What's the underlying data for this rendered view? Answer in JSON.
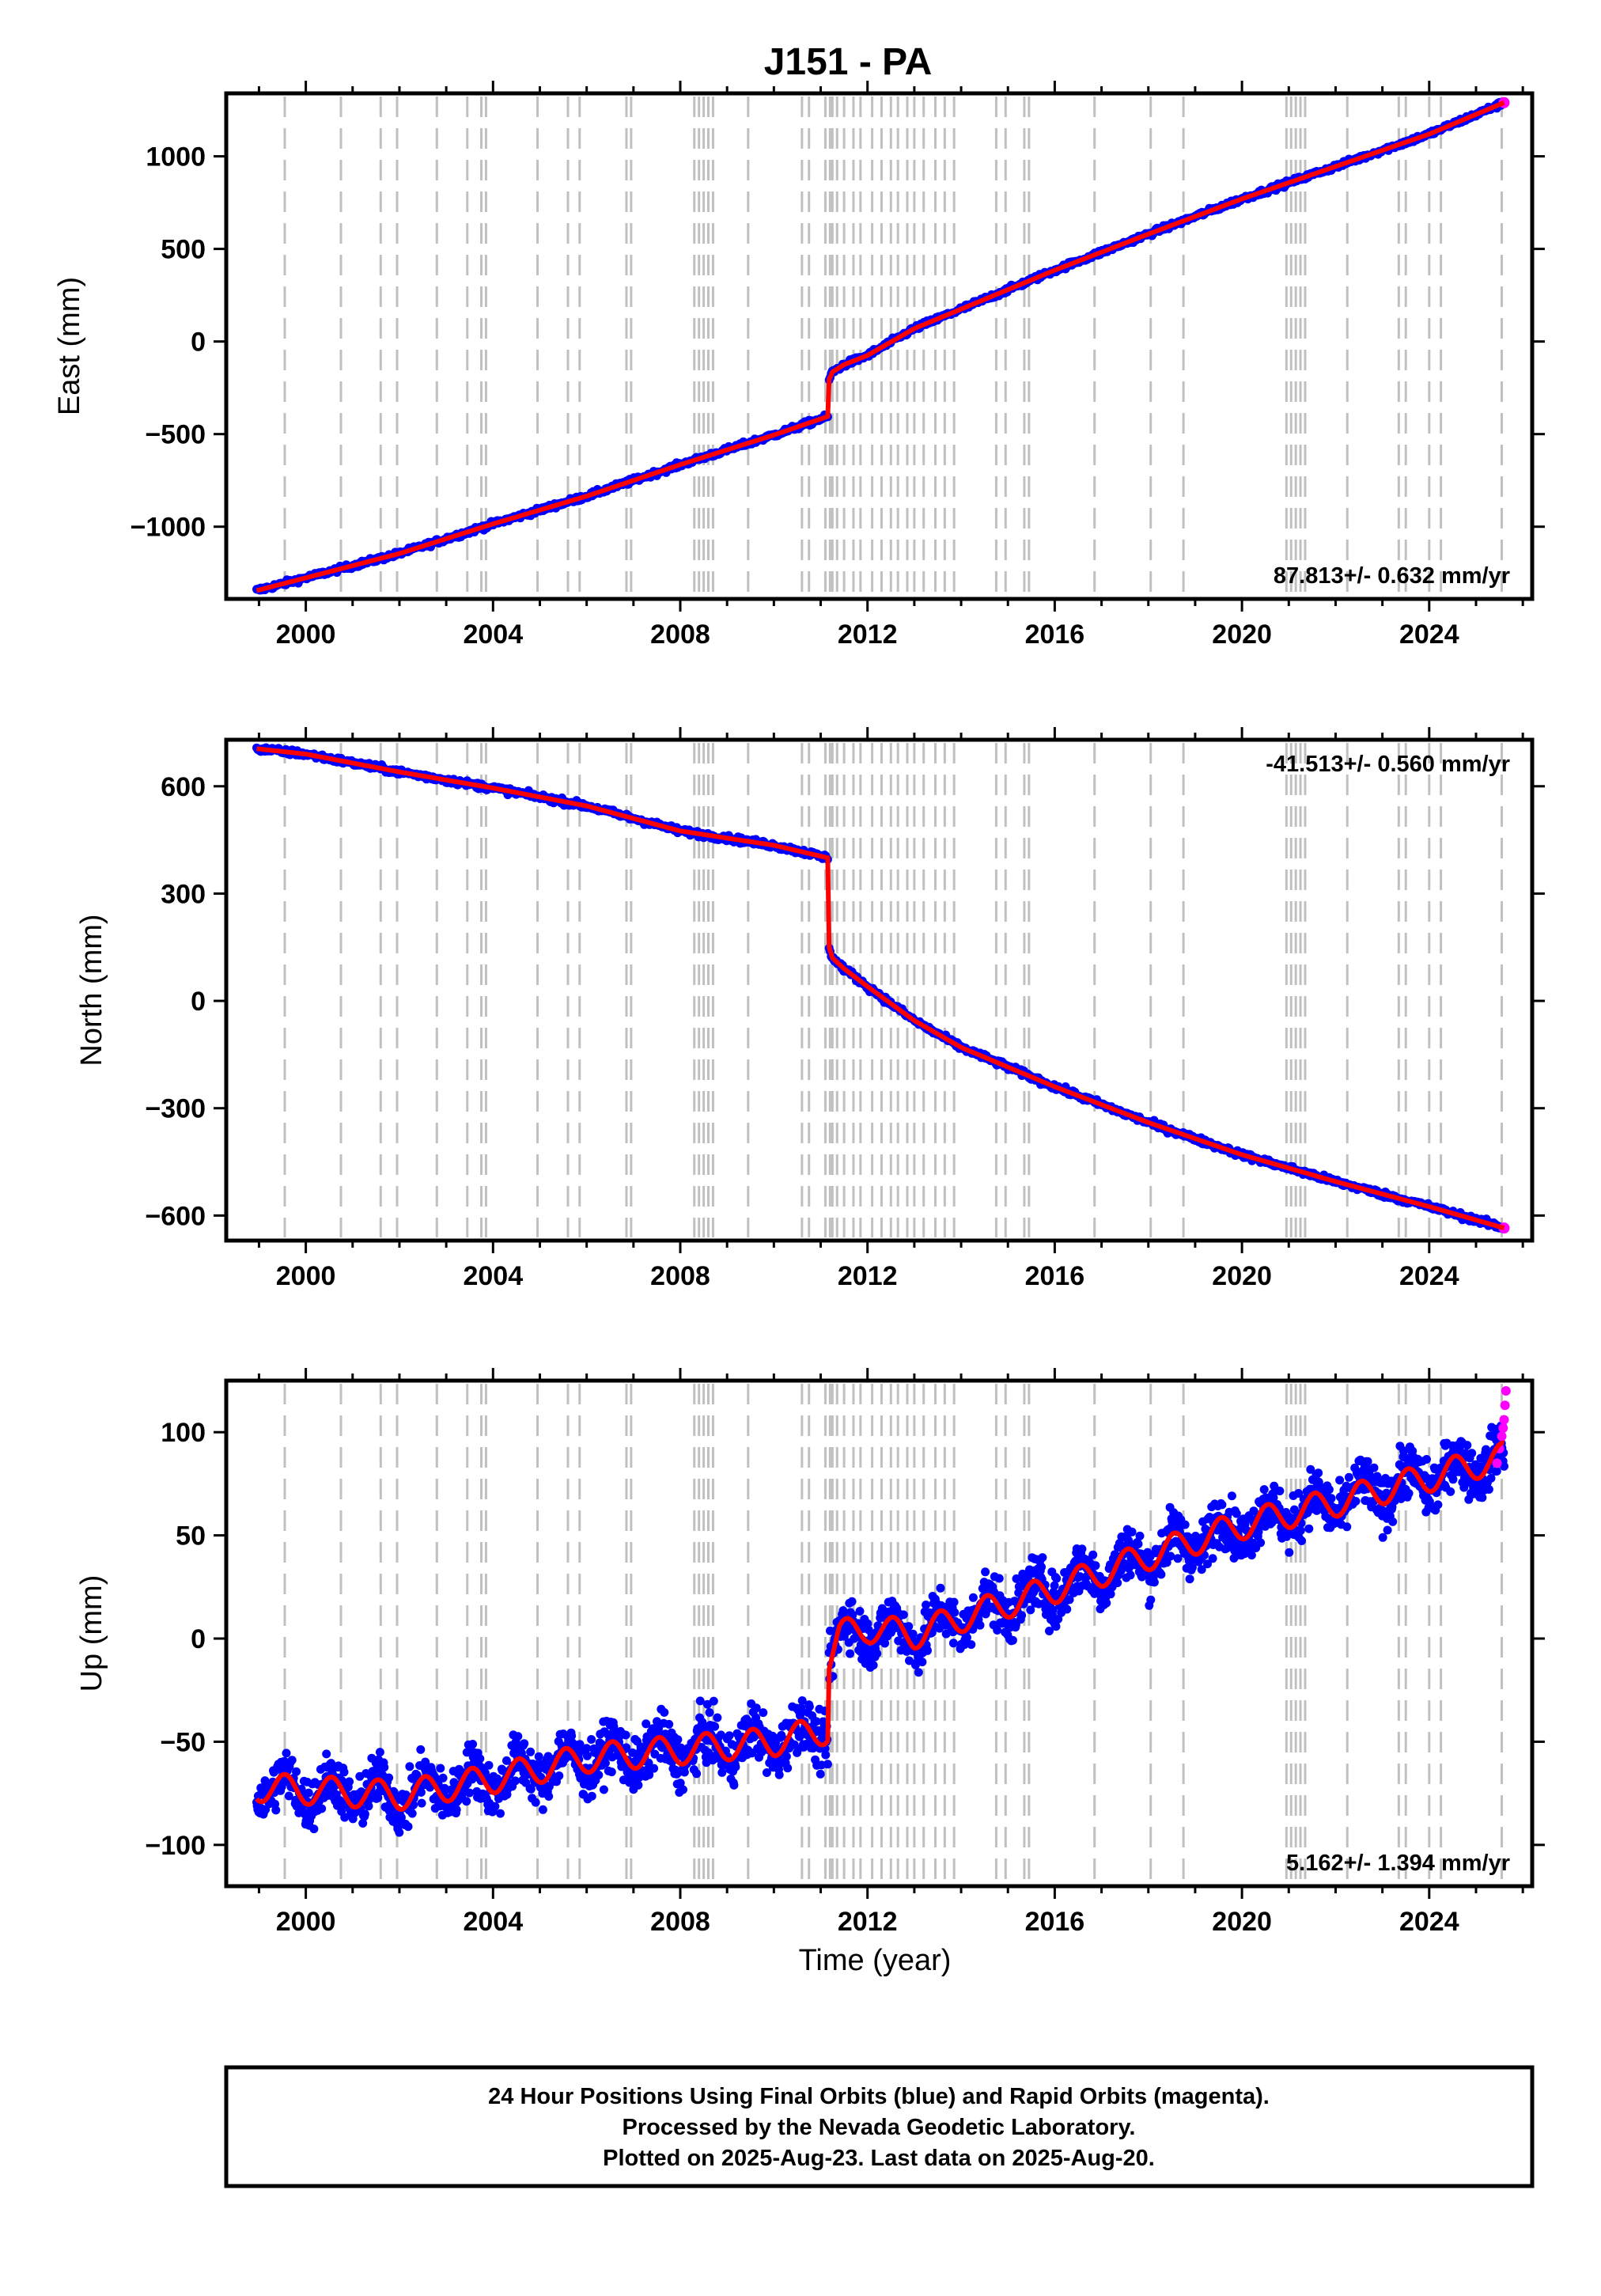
{
  "title": "J151 - PA",
  "xlabel": "Time (year)",
  "colors": {
    "final_orbits": "#0000ff",
    "rapid_orbits": "#ff00ff",
    "model": "#ff0000",
    "steps": "#c0c0c0",
    "frame": "#000000"
  },
  "caption": [
    "24 Hour Positions Using Final Orbits (blue) and Rapid Orbits (magenta).",
    "Processed by the Nevada Geodetic Laboratory.",
    "Plotted on 2025-Aug-23. Last data on 2025-Aug-20."
  ],
  "chart_data": [
    {
      "type": "scatter",
      "ylabel": "East (mm)",
      "rate_label": "87.813+/- 0.632 mm/yr",
      "rate_position": "bottom-right",
      "xlim": [
        1998.3,
        2026.2
      ],
      "ylim": [
        -1390,
        1340
      ],
      "xticks": [
        2000,
        2004,
        2008,
        2012,
        2016,
        2020,
        2024
      ],
      "yticks": [
        -1000,
        -500,
        0,
        500,
        1000
      ],
      "ytick_labels": [
        "−1000",
        "−500",
        "0",
        "500",
        "1000"
      ],
      "model_segments": [
        {
          "x": [
            1998.95,
            2002.0,
            2004.0,
            2006.0,
            2008.0,
            2010.0,
            2011.15
          ],
          "y": [
            -1345,
            -1145,
            -985,
            -835,
            -665,
            -505,
            -405
          ]
        },
        {
          "x": [
            2011.18,
            2011.25,
            2011.5,
            2012.0,
            2013.0,
            2014.0,
            2016.0,
            2018.0,
            2020.0,
            2022.0,
            2024.0,
            2025.6
          ],
          "y": [
            -205,
            -165,
            -125,
            -75,
            70,
            175,
            385,
            580,
            770,
            945,
            1120,
            1290
          ]
        }
      ],
      "noise": 10
    },
    {
      "type": "scatter",
      "ylabel": "North (mm)",
      "rate_label": "-41.513+/- 0.560 mm/yr",
      "rate_position": "top-right",
      "xlim": [
        1998.3,
        2026.2
      ],
      "ylim": [
        -670,
        730
      ],
      "xticks": [
        2000,
        2004,
        2008,
        2012,
        2016,
        2020,
        2024
      ],
      "yticks": [
        -600,
        -300,
        0,
        300,
        600
      ],
      "ytick_labels": [
        "−600",
        "−300",
        "0",
        "300",
        "600"
      ],
      "model_segments": [
        {
          "x": [
            1998.95,
            2000.0,
            2002.0,
            2004.0,
            2006.0,
            2008.0,
            2010.0,
            2011.15
          ],
          "y": [
            705,
            690,
            640,
            595,
            545,
            475,
            435,
            400
          ]
        },
        {
          "x": [
            2011.18,
            2011.25,
            2011.5,
            2012.0,
            2013.0,
            2014.0,
            2015.0,
            2016.0,
            2018.0,
            2020.0,
            2022.0,
            2024.0,
            2025.6
          ],
          "y": [
            150,
            120,
            90,
            40,
            -55,
            -130,
            -185,
            -240,
            -340,
            -430,
            -505,
            -575,
            -635
          ]
        }
      ],
      "noise": 6
    },
    {
      "type": "scatter",
      "ylabel": "Up (mm)",
      "rate_label": "5.162+/- 1.394 mm/yr",
      "rate_position": "bottom-right",
      "xlim": [
        1998.3,
        2026.2
      ],
      "ylim": [
        -120,
        125
      ],
      "xticks": [
        2000,
        2004,
        2008,
        2012,
        2016,
        2020,
        2024
      ],
      "yticks": [
        -100,
        -50,
        0,
        50,
        100
      ],
      "ytick_labels": [
        "−100",
        "−50",
        "0",
        "50",
        "100"
      ],
      "model_segments": [
        {
          "x": [
            1998.95,
            2002.0,
            2004.0,
            2006.0,
            2008.0,
            2010.0,
            2011.15
          ],
          "y": [
            -72,
            -76,
            -68,
            -58,
            -54,
            -50,
            -44
          ]
        },
        {
          "x": [
            2011.18,
            2011.4,
            2012.0,
            2013.0,
            2014.0,
            2016.0,
            2018.0,
            2020.0,
            2022.0,
            2024.0,
            2025.6
          ],
          "y": [
            -10,
            2,
            5,
            2,
            10,
            24,
            40,
            55,
            66,
            78,
            88
          ]
        }
      ],
      "seasonal_amp": 7,
      "noise": 9,
      "rapid_points": [
        [
          2025.45,
          85
        ],
        [
          2025.5,
          92
        ],
        [
          2025.55,
          98
        ],
        [
          2025.6,
          106
        ],
        [
          2025.62,
          113
        ],
        [
          2025.64,
          120
        ],
        [
          2025.58,
          102
        ]
      ]
    }
  ],
  "step_epochs": [
    1999.55,
    2000.75,
    2001.6,
    2001.95,
    2002.8,
    2003.45,
    2003.75,
    2003.85,
    2004.95,
    2005.6,
    2005.85,
    2006.85,
    2006.95,
    2008.3,
    2008.4,
    2008.5,
    2008.6,
    2008.7,
    2009.45,
    2010.6,
    2010.75,
    2011.1,
    2011.2,
    2011.25,
    2011.35,
    2011.5,
    2011.7,
    2011.85,
    2012.1,
    2012.3,
    2012.5,
    2012.65,
    2012.85,
    2013.0,
    2013.2,
    2013.45,
    2013.65,
    2013.85,
    2014.75,
    2014.95,
    2015.35,
    2015.45,
    2016.85,
    2018.05,
    2018.75,
    2020.95,
    2021.05,
    2021.15,
    2021.25,
    2021.35,
    2022.25,
    2023.35,
    2023.5,
    2024.0,
    2024.25,
    2025.55
  ]
}
